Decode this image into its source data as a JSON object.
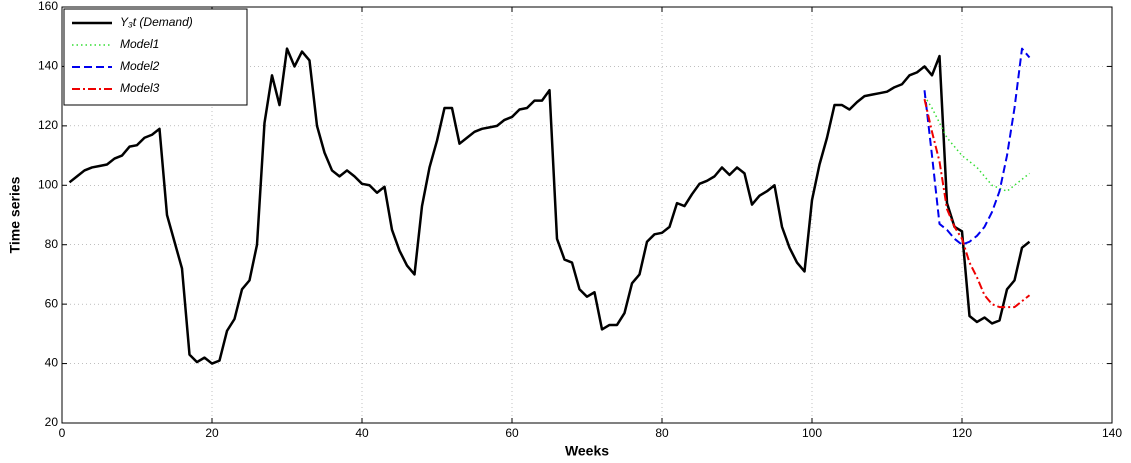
{
  "chart_data": {
    "type": "line",
    "x_label": "Weeks",
    "y_label": "Time series",
    "xlim": [
      0,
      140
    ],
    "xticks": [
      0,
      20,
      40,
      60,
      80,
      100,
      120,
      140
    ],
    "ylim": [
      20,
      160
    ],
    "yticks": [
      20,
      40,
      60,
      80,
      100,
      120,
      140,
      160
    ],
    "grid": true,
    "legend": "upper left",
    "series": [
      {
        "name": "Y₃t (Demand)",
        "color": "#000000",
        "style": "solid",
        "width": 2.5,
        "x": [
          1,
          2,
          3,
          4,
          5,
          6,
          7,
          8,
          9,
          10,
          11,
          12,
          13,
          14,
          15,
          16,
          17,
          18,
          19,
          20,
          21,
          22,
          23,
          24,
          25,
          26,
          27,
          28,
          29,
          30,
          31,
          32,
          33,
          34,
          35,
          36,
          37,
          38,
          39,
          40,
          41,
          42,
          43,
          44,
          45,
          46,
          47,
          48,
          49,
          50,
          51,
          52,
          53,
          54,
          55,
          56,
          57,
          58,
          59,
          60,
          61,
          62,
          63,
          64,
          65,
          66,
          67,
          68,
          69,
          70,
          71,
          72,
          73,
          74,
          75,
          76,
          77,
          78,
          79,
          80,
          81,
          82,
          83,
          84,
          85,
          86,
          87,
          88,
          89,
          90,
          91,
          92,
          93,
          94,
          95,
          96,
          97,
          98,
          99,
          100,
          101,
          102,
          103,
          104,
          105,
          106,
          107,
          108,
          109,
          110,
          111,
          112,
          113,
          114,
          115,
          116,
          117,
          118,
          119,
          120,
          121,
          122,
          123,
          124,
          125,
          126,
          127,
          128,
          129
        ],
        "values": [
          101,
          103,
          105,
          106,
          106.5,
          107,
          109,
          110,
          113,
          113.5,
          116,
          117,
          119,
          90,
          81,
          72,
          43,
          40.5,
          42,
          40,
          41,
          51,
          55,
          65,
          68,
          80,
          121,
          137,
          127,
          146,
          140,
          145,
          142,
          120,
          111,
          105,
          103,
          105,
          103,
          100.5,
          100,
          97.5,
          99.5,
          85,
          78,
          73,
          70,
          93,
          106,
          115,
          126,
          126,
          114,
          116,
          118,
          119,
          119.5,
          120,
          122,
          123,
          125.5,
          126,
          128.5,
          128.5,
          132,
          82,
          75,
          74,
          65,
          62.5,
          64,
          51.5,
          53,
          53,
          57,
          67,
          70,
          81,
          83.5,
          84,
          86,
          94,
          93,
          97,
          100.5,
          101.5,
          103,
          106,
          103.5,
          106,
          104,
          93.5,
          96.5,
          98,
          100,
          86,
          79,
          74,
          71,
          95,
          107,
          116,
          127,
          127,
          125.5,
          128,
          130,
          130.5,
          131,
          131.5,
          133,
          134,
          137,
          138,
          140,
          137,
          143.5,
          94,
          86,
          84.5,
          56,
          54,
          55.5,
          53.5,
          54.5,
          65,
          68,
          79,
          81
        ]
      },
      {
        "name": "Model1",
        "color": "#33dd33",
        "style": "dotted",
        "width": 1.5,
        "x": [
          115,
          116,
          117,
          118,
          119,
          120,
          121,
          122,
          123,
          124,
          125,
          126,
          127,
          128,
          129
        ],
        "values": [
          130,
          126,
          121,
          116,
          113,
          110,
          108,
          106,
          103,
          100,
          99,
          98,
          100,
          102,
          104
        ]
      },
      {
        "name": "Model2",
        "color": "#0000ee",
        "style": "dashed",
        "width": 2,
        "x": [
          115,
          116,
          117,
          118,
          119,
          120,
          121,
          122,
          123,
          124,
          125,
          126,
          127,
          128,
          129
        ],
        "values": [
          132,
          110,
          87,
          85,
          82,
          80,
          81,
          83,
          86,
          91,
          98,
          110,
          126,
          146,
          143
        ]
      },
      {
        "name": "Model3",
        "color": "#ee0000",
        "style": "dash-dot",
        "width": 2,
        "x": [
          115,
          116,
          117,
          118,
          119,
          120,
          121,
          122,
          123,
          124,
          125,
          126,
          127,
          128,
          129
        ],
        "values": [
          129,
          118,
          108,
          92,
          86,
          82,
          74,
          69,
          63,
          60,
          59,
          59,
          59,
          61,
          63
        ]
      }
    ]
  }
}
